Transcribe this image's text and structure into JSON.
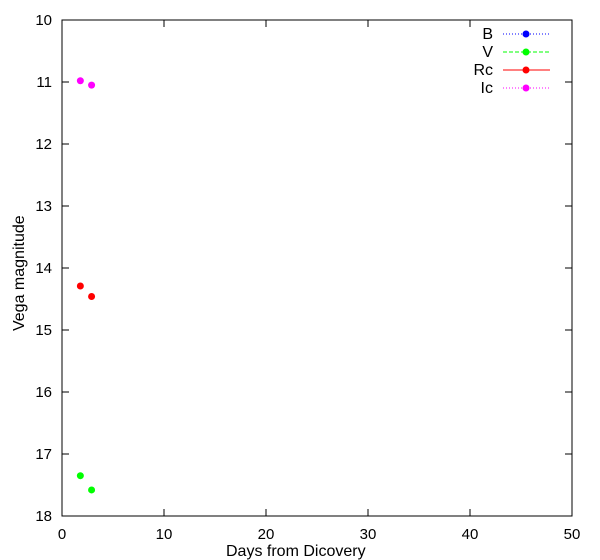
{
  "chart_data": {
    "type": "scatter",
    "title": "",
    "xlabel": "Days from Dicovery",
    "ylabel": "Vega magnitude",
    "xlim": [
      0,
      50
    ],
    "ylim": [
      10,
      18
    ],
    "y_inverted": true,
    "grid": false,
    "legend_position": "top-right",
    "x_ticks": [
      "0",
      "10",
      "20",
      "30",
      "40",
      "50"
    ],
    "y_ticks": [
      "10",
      "11",
      "12",
      "13",
      "14",
      "15",
      "16",
      "17",
      "18"
    ],
    "series": [
      {
        "name": "B",
        "color": "#0000ff",
        "line_style": "dotted",
        "points": []
      },
      {
        "name": "V",
        "color": "#00ff00",
        "line_style": "dashed",
        "points": [
          [
            1.8,
            17.35
          ],
          [
            2.9,
            17.58
          ]
        ]
      },
      {
        "name": "Rc",
        "color": "#ff0000",
        "line_style": "solid",
        "points": [
          [
            1.8,
            14.29
          ],
          [
            2.9,
            14.46
          ]
        ]
      },
      {
        "name": "Ic",
        "color": "#ff00ff",
        "line_style": "dotted",
        "points": [
          [
            1.8,
            10.98
          ],
          [
            2.9,
            11.05
          ]
        ]
      }
    ]
  }
}
